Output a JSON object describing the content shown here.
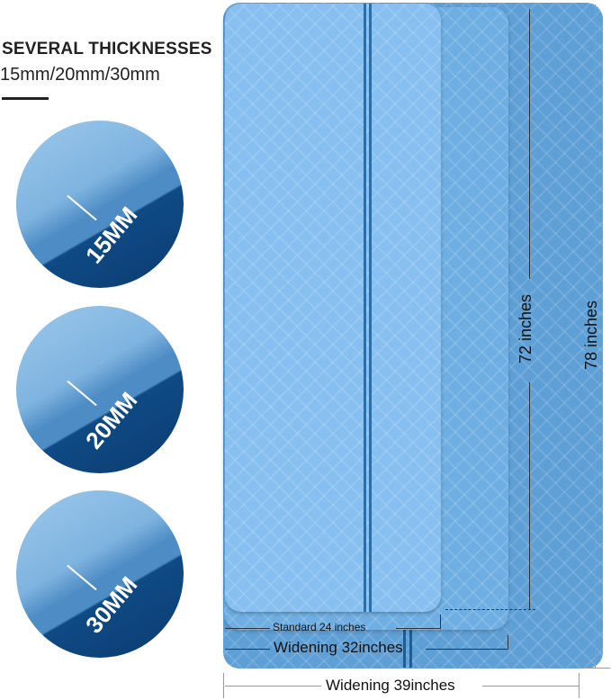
{
  "heading": {
    "title": "SEVERAL THICKNESSES",
    "subtitle": "15mm/20mm/30mm"
  },
  "thickness_samples": [
    {
      "label": "15MM"
    },
    {
      "label": "20MM"
    },
    {
      "label": "30MM"
    }
  ],
  "dimensions": {
    "standard_width": "Standard 24 inches",
    "mid_width": "Widening 32inches",
    "wide_width": "Widening 39inches",
    "standard_length": "72 inches",
    "long_length": "78 inches"
  },
  "colors": {
    "mat_light": "#86bff0",
    "mat_mid": "#6eaee2",
    "mat_dark": "#5e9fd6",
    "bottom_dark": "#0b3c70"
  }
}
